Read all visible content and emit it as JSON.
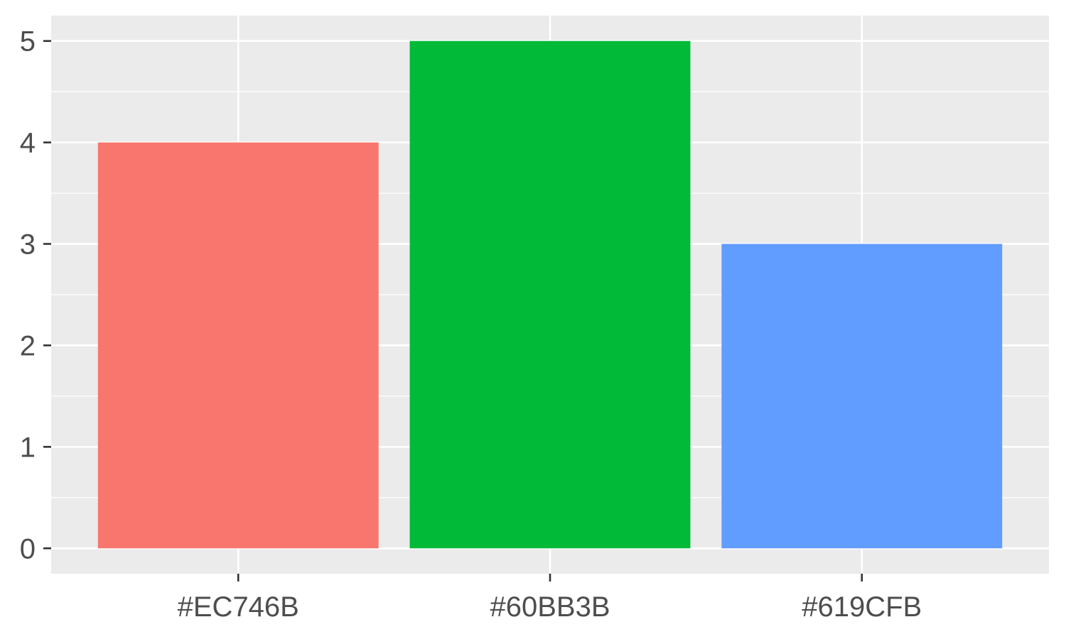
{
  "chart_data": {
    "type": "bar",
    "categories": [
      "#EC746B",
      "#60BB3B",
      "#619CFB"
    ],
    "values": [
      4,
      5,
      3
    ],
    "title": "",
    "xlabel": "",
    "ylabel": "",
    "ylim": [
      -0.25,
      5.25
    ],
    "yticks": [
      0,
      1,
      2,
      3,
      4,
      5
    ],
    "ytick_labels": [
      "0",
      "1",
      "2",
      "3",
      "4",
      "5"
    ],
    "grid": true,
    "legend": "none",
    "colors": {
      "panel_background": "#EBEBEB",
      "grid": "#FFFFFF",
      "tick_text": "#4D4D4D",
      "tick_mark": "#333333",
      "bars": [
        "#F8766D",
        "#00BA38",
        "#619CFF"
      ]
    }
  }
}
